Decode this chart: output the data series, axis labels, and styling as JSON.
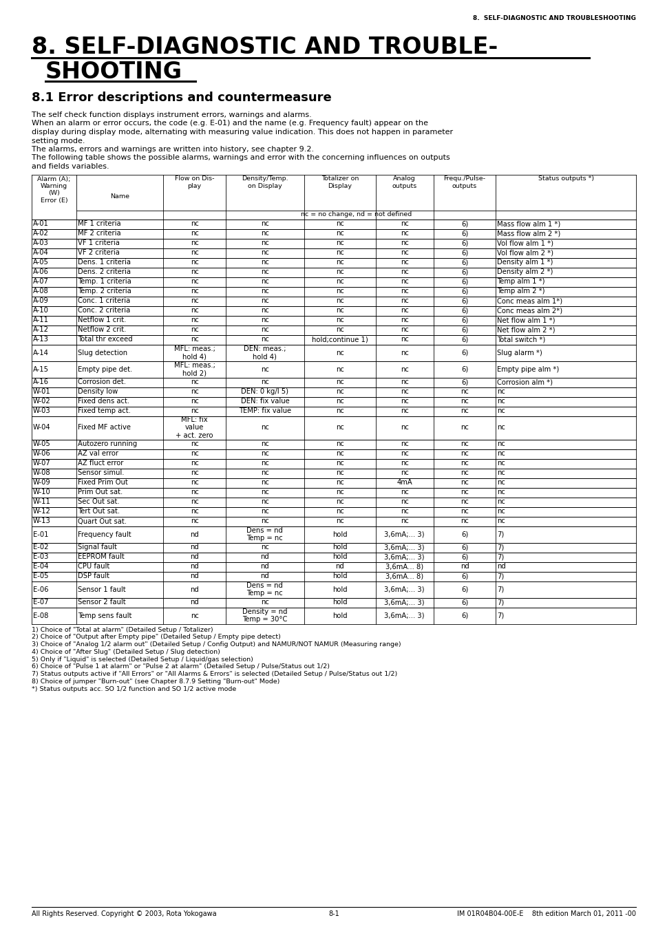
{
  "header_text": "8.  SELF-DIAGNOSTIC AND TROUBLESHOOTING",
  "title_line1": "8. SELF-DIAGNOSTIC AND TROUBLE-",
  "title_line2": "  SHOOTING",
  "subtitle": "8.1 Error descriptions and countermeasure",
  "col_headers": [
    "Alarm (A);\nWarning\n(W)\nError (E)",
    "Name",
    "Flow on Dis-\nplay",
    "Density/Temp.\non Display",
    "Totalizer on\nDisplay",
    "Analog\noutputs",
    "Frequ./Pulse-\noutputs",
    "Status outputs *)"
  ],
  "nc_nd_note": "nc = no change, nd = not defined",
  "table_rows": [
    [
      "A-01",
      "MF 1 criteria",
      "nc",
      "nc",
      "nc",
      "nc",
      "6)",
      "Mass flow alm 1 *)"
    ],
    [
      "A-02",
      "MF 2 criteria",
      "nc",
      "nc",
      "nc",
      "nc",
      "6)",
      "Mass flow alm 2 *)"
    ],
    [
      "A-03",
      "VF 1 criteria",
      "nc",
      "nc",
      "nc",
      "nc",
      "6)",
      "Vol flow alm 1 *)"
    ],
    [
      "A-04",
      "VF 2 criteria",
      "nc",
      "nc",
      "nc",
      "nc",
      "6)",
      "Vol flow alm 2 *)"
    ],
    [
      "A-05",
      "Dens. 1 criteria",
      "nc",
      "nc",
      "nc",
      "nc",
      "6)",
      "Density alm 1 *)"
    ],
    [
      "A-06",
      "Dens. 2 criteria",
      "nc",
      "nc",
      "nc",
      "nc",
      "6)",
      "Density alm 2 *)"
    ],
    [
      "A-07",
      "Temp. 1 criteria",
      "nc",
      "nc",
      "nc",
      "nc",
      "6)",
      "Temp alm 1 *)"
    ],
    [
      "A-08",
      "Temp. 2 criteria",
      "nc",
      "nc",
      "nc",
      "nc",
      "6)",
      "Temp alm 2 *)"
    ],
    [
      "A-09",
      "Conc. 1 criteria",
      "nc",
      "nc",
      "nc",
      "nc",
      "6)",
      "Conc meas alm 1*)"
    ],
    [
      "A-10",
      "Conc. 2 criteria",
      "nc",
      "nc",
      "nc",
      "nc",
      "6)",
      "Conc meas alm 2*)"
    ],
    [
      "A-11",
      "Netflow 1 crit.",
      "nc",
      "nc",
      "nc",
      "nc",
      "6)",
      "Net flow alm 1 *)"
    ],
    [
      "A-12",
      "Netflow 2 crit.",
      "nc",
      "nc",
      "nc",
      "nc",
      "6)",
      "Net flow alm 2 *)"
    ],
    [
      "A-13",
      "Total thr exceed",
      "nc",
      "nc",
      "hold;continue 1)",
      "nc",
      "6)",
      "Total switch *)"
    ],
    [
      "A-14",
      "Slug detection",
      "MFL: meas.;\nhold 4)",
      "DEN: meas.;\nhold 4)",
      "nc",
      "nc",
      "6)",
      "Slug alarm *)"
    ],
    [
      "A-15",
      "Empty pipe det.",
      "MFL: meas.;\nhold 2)",
      "nc",
      "nc",
      "nc",
      "6)",
      "Empty pipe alm *)"
    ],
    [
      "A-16",
      "Corrosion det.",
      "nc",
      "nc",
      "nc",
      "nc",
      "6)",
      "Corrosion alm *)"
    ],
    [
      "W-01",
      "Density low",
      "nc",
      "DEN: 0 kg/l 5)",
      "nc",
      "nc",
      "nc",
      "nc"
    ],
    [
      "W-02",
      "Fixed dens act.",
      "nc",
      "DEN: fix value",
      "nc",
      "nc",
      "nc",
      "nc"
    ],
    [
      "W-03",
      "Fixed temp act.",
      "nc",
      "TEMP: fix value",
      "nc",
      "nc",
      "nc",
      "nc"
    ],
    [
      "W-04",
      "Fixed MF active",
      "MFL: fix\nvalue\n+ act. zero",
      "nc",
      "nc",
      "nc",
      "nc",
      "nc"
    ],
    [
      "W-05",
      "Autozero running",
      "nc",
      "nc",
      "nc",
      "nc",
      "nc",
      "nc"
    ],
    [
      "W-06",
      "AZ val error",
      "nc",
      "nc",
      "nc",
      "nc",
      "nc",
      "nc"
    ],
    [
      "W-07",
      "AZ fluct error",
      "nc",
      "nc",
      "nc",
      "nc",
      "nc",
      "nc"
    ],
    [
      "W-08",
      "Sensor simul.",
      "nc",
      "nc",
      "nc",
      "nc",
      "nc",
      "nc"
    ],
    [
      "W-09",
      "Fixed Prim Out",
      "nc",
      "nc",
      "nc",
      "4mA",
      "nc",
      "nc"
    ],
    [
      "W-10",
      "Prim Out sat.",
      "nc",
      "nc",
      "nc",
      "nc",
      "nc",
      "nc"
    ],
    [
      "W-11",
      "Sec Out sat.",
      "nc",
      "nc",
      "nc",
      "nc",
      "nc",
      "nc"
    ],
    [
      "W-12",
      "Tert Out sat.",
      "nc",
      "nc",
      "nc",
      "nc",
      "nc",
      "nc"
    ],
    [
      "W-13",
      "Quart Out sat.",
      "nc",
      "nc",
      "nc",
      "nc",
      "nc",
      "nc"
    ],
    [
      "E-01",
      "Frequency fault",
      "nd",
      "Dens = nd\nTemp = nc",
      "hold",
      "3,6mA;... 3)",
      "6)",
      "7)"
    ],
    [
      "E-02",
      "Signal fault",
      "nd",
      "nc",
      "hold",
      "3,6mA;... 3)",
      "6)",
      "7)"
    ],
    [
      "E-03",
      "EEPROM fault",
      "nd",
      "nd",
      "hold",
      "3,6mA;... 3)",
      "6)",
      "7)"
    ],
    [
      "E-04",
      "CPU fault",
      "nd",
      "nd",
      "nd",
      "3,6mA... 8)",
      "nd",
      "nd"
    ],
    [
      "E-05",
      "DSP fault",
      "nd",
      "nd",
      "hold",
      "3,6mA... 8)",
      "6)",
      "7)"
    ],
    [
      "E-06",
      "Sensor 1 fault",
      "nd",
      "Dens = nd\nTemp = nc",
      "hold",
      "3,6mA;... 3)",
      "6)",
      "7)"
    ],
    [
      "E-07",
      "Sensor 2 fault",
      "nd",
      "nc",
      "hold",
      "3,6mA;... 3)",
      "6)",
      "7)"
    ],
    [
      "E-08",
      "Temp sens fault",
      "nc",
      "Density = nd\nTemp = 30°C",
      "hold",
      "3,6mA;... 3)",
      "6)",
      "7)"
    ]
  ],
  "footnotes": [
    "1) Choice of \"Total at alarm\" (Detailed Setup / Totalizer)",
    "2) Choice of \"Output after Empty pipe\" (Detailed Setup / Empty pipe detect)",
    "3) Choice of \"Analog 1/2 alarm out\" (Detailed Setup / Config Output) and NAMUR/NOT NAMUR (Measuring range)",
    "4) Choice of \"After Slug\" (Detailed Setup / Slug detection)",
    "5) Only if \"Liquid\" is selected (Detailed Setup / Liquid/gas selection)",
    "6) Choice of \"Pulse 1 at alarm\" or \"Pulse 2 at alarm\" (Detailed Setup / Pulse/Status out 1/2)",
    "7) Status outputs active if \"All Errors\" or \"All Alarms & Errors\" is selected (Detailed Setup / Pulse/Status out 1/2)",
    "8) Choice of jumper \"Burn-out\" (see Chapter 8.7.9 Setting \"Burn-out\" Mode)",
    "*) Status outputs acc. SO 1/2 function and SO 1/2 active mode"
  ],
  "footer_left": "All Rights Reserved. Copyright © 2003, Rota Yokogawa",
  "footer_center": "8-1",
  "footer_right": "IM 01R04B04-00E-E    8th edition March 01, 2011 -00"
}
